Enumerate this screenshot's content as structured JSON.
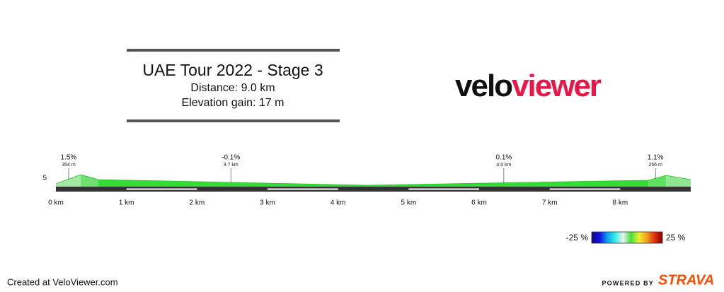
{
  "chart_data": {
    "type": "area",
    "title": "UAE Tour 2022 - Stage 3",
    "subtitle": [
      "Distance: 9.0 km",
      "Elevation gain: 17 m"
    ],
    "x": [
      0,
      0.35,
      0.6,
      4.4,
      8.4,
      8.65,
      9.0
    ],
    "series": [
      {
        "values": [
          1.5,
          8,
          4.5,
          0.5,
          4,
          7.5,
          4.5
        ],
        "segment_colors": [
          "#a3e9a3",
          "#6fe06f",
          "#35dc35",
          "#35dc35",
          "#5fe05f",
          "#90e690"
        ]
      }
    ],
    "xlim": [
      0,
      9
    ],
    "xticks": [
      {
        "value": 0,
        "label": "0 km"
      },
      {
        "value": 1,
        "label": "1 km"
      },
      {
        "value": 2,
        "label": "2 km"
      },
      {
        "value": 3,
        "label": "3 km"
      },
      {
        "value": 4,
        "label": "4 km"
      },
      {
        "value": 5,
        "label": "5 km"
      },
      {
        "value": 6,
        "label": "6 km"
      },
      {
        "value": 7,
        "label": "7 km"
      },
      {
        "value": 8,
        "label": "8 km"
      }
    ],
    "yticks": [
      5
    ],
    "annotations": [
      {
        "x": 0.18,
        "label": "1.5%",
        "sublabel": "354 m"
      },
      {
        "x": 2.48,
        "label": "-0.1%",
        "sublabel": "3.7 km"
      },
      {
        "x": 6.35,
        "label": "0.1%",
        "sublabel": "4.0 km"
      },
      {
        "x": 8.5,
        "label": "1.1%",
        "sublabel": "256 m"
      }
    ],
    "colorbar": {
      "ticks": [
        {
          "value": -25,
          "label": "-25 %"
        },
        {
          "value": 25,
          "label": "25 %"
        }
      ],
      "colors": [
        "#0a0a7a",
        "#1010e0",
        "#10a0f0",
        "#30f0e0",
        "#f0f0f0",
        "#40e040",
        "#f0f030",
        "#f0a020",
        "#e03010",
        "#800000"
      ]
    }
  },
  "logo": {
    "left": "velo",
    "right": "viewer"
  },
  "footer": {
    "credit": "Created at VeloViewer.com",
    "powered": "POWERED BY",
    "brand": "STRAVA"
  }
}
